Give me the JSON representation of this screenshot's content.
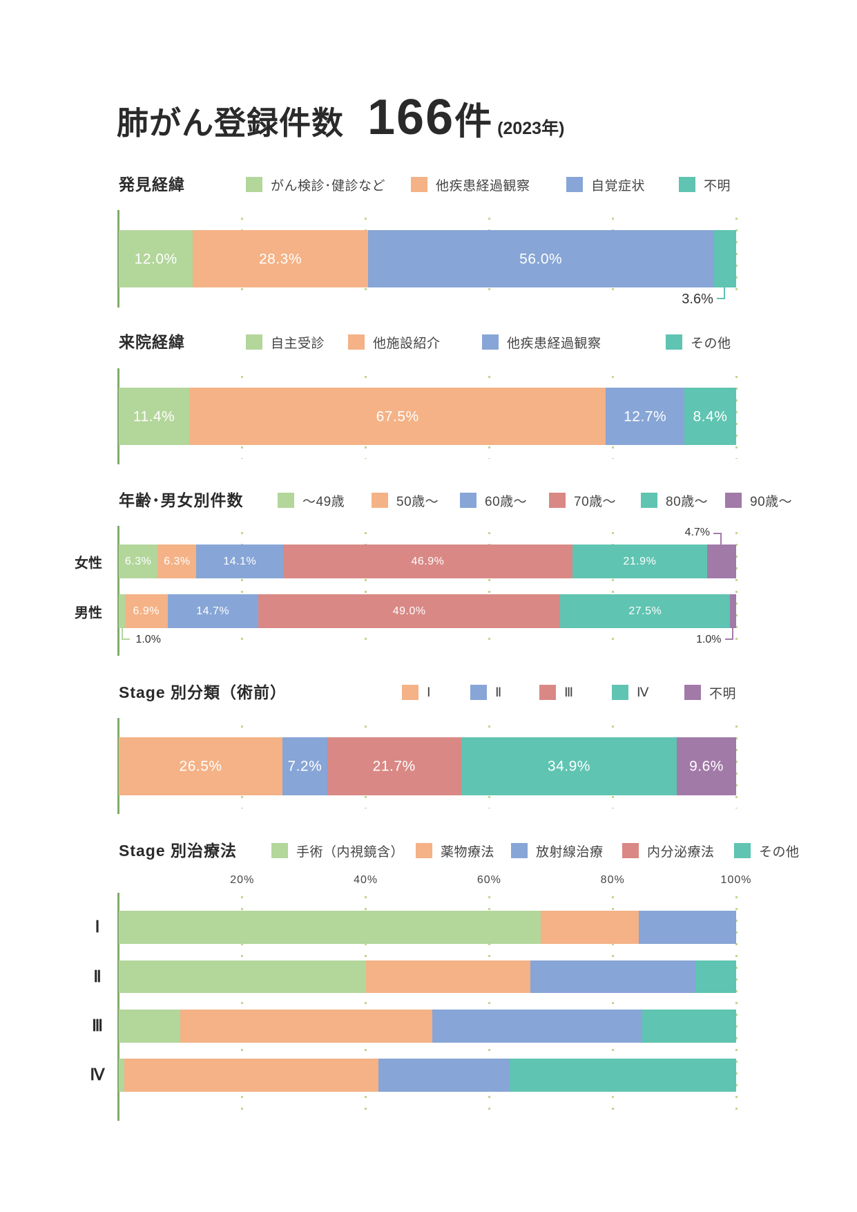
{
  "title": {
    "label": "肺がん登録件数",
    "count": "166",
    "unit": "件",
    "year": "(2023年)"
  },
  "colors": {
    "green": "#b3d69b",
    "orange": "#f4b286",
    "blue": "#87a5d6",
    "red": "#d98885",
    "teal": "#5fc4b1",
    "purple": "#a17aa8",
    "axis": "#7faa6a",
    "grid": "#bcd88f"
  },
  "chart_data": [
    {
      "title": "発見経緯",
      "type": "bar",
      "orientation": "horizontal",
      "stacked": true,
      "xlim": [
        0,
        100
      ],
      "grid": true,
      "legend": "top",
      "data_labels": true,
      "label_suffix": "%",
      "series": [
        {
          "name": "がん検診･健診など",
          "color": "#b3d69b",
          "values": [
            12.0
          ]
        },
        {
          "name": "他疾患経過観察",
          "color": "#f4b286",
          "values": [
            28.3
          ]
        },
        {
          "name": "自覚症状",
          "color": "#87a5d6",
          "values": [
            56.0
          ]
        },
        {
          "name": "不明",
          "color": "#5fc4b1",
          "values": [
            3.6
          ]
        }
      ]
    },
    {
      "title": "来院経緯",
      "type": "bar",
      "orientation": "horizontal",
      "stacked": true,
      "xlim": [
        0,
        100
      ],
      "grid": true,
      "legend": "top",
      "data_labels": true,
      "label_suffix": "%",
      "series": [
        {
          "name": "自主受診",
          "color": "#b3d69b",
          "values": [
            11.4
          ]
        },
        {
          "name": "他施設紹介",
          "color": "#f4b286",
          "values": [
            67.5
          ]
        },
        {
          "name": "他疾患経過観察",
          "color": "#87a5d6",
          "values": [
            12.7
          ]
        },
        {
          "name": "その他",
          "color": "#5fc4b1",
          "values": [
            8.4
          ]
        }
      ]
    },
    {
      "title": "年齢･男女別件数",
      "type": "bar",
      "orientation": "horizontal",
      "stacked": true,
      "xlim": [
        0,
        100
      ],
      "grid": true,
      "legend": "top",
      "data_labels": true,
      "label_suffix": "%",
      "categories": [
        "女性",
        "男性"
      ],
      "series": [
        {
          "name": "～49歳",
          "color": "#b3d69b",
          "values": [
            6.3,
            1.0
          ]
        },
        {
          "name": "50歳～",
          "color": "#f4b286",
          "values": [
            6.3,
            6.9
          ]
        },
        {
          "name": "60歳～",
          "color": "#87a5d6",
          "values": [
            14.1,
            14.7
          ]
        },
        {
          "name": "70歳～",
          "color": "#d98885",
          "values": [
            46.9,
            49.0
          ]
        },
        {
          "name": "80歳～",
          "color": "#5fc4b1",
          "values": [
            21.9,
            27.5
          ]
        },
        {
          "name": "90歳～",
          "color": "#a17aa8",
          "values": [
            4.7,
            1.0
          ]
        }
      ]
    },
    {
      "title": "Stage 別分類（術前）",
      "type": "bar",
      "orientation": "horizontal",
      "stacked": true,
      "xlim": [
        0,
        100
      ],
      "grid": true,
      "legend": "top",
      "data_labels": true,
      "label_suffix": "%",
      "series": [
        {
          "name": "Ⅰ",
          "color": "#f4b286",
          "values": [
            26.5
          ]
        },
        {
          "name": "Ⅱ",
          "color": "#87a5d6",
          "values": [
            7.2
          ]
        },
        {
          "name": "Ⅲ",
          "color": "#d98885",
          "values": [
            21.7
          ]
        },
        {
          "name": "Ⅳ",
          "color": "#5fc4b1",
          "values": [
            34.9
          ]
        },
        {
          "name": "不明",
          "color": "#a17aa8",
          "values": [
            9.6
          ]
        }
      ]
    },
    {
      "title": "Stage 別治療法",
      "type": "bar",
      "orientation": "horizontal",
      "stacked": true,
      "xlim": [
        0,
        100
      ],
      "grid": true,
      "legend": "top",
      "data_labels": false,
      "xticks": [
        "20%",
        "40%",
        "60%",
        "80%",
        "100%"
      ],
      "categories": [
        "Ⅰ",
        "Ⅱ",
        "Ⅲ",
        "Ⅳ"
      ],
      "series": [
        {
          "name": "手術（内視鏡含）",
          "color": "#b3d69b",
          "values": [
            68.4,
            40.0,
            10.0,
            0.9
          ]
        },
        {
          "name": "薬物療法",
          "color": "#f4b286",
          "values": [
            15.8,
            26.7,
            40.8,
            41.2
          ]
        },
        {
          "name": "放射線治療",
          "color": "#87a5d6",
          "values": [
            15.8,
            26.7,
            34.0,
            21.2
          ]
        },
        {
          "name": "内分泌療法",
          "color": "#d98885",
          "values": [
            0,
            0,
            0,
            0
          ]
        },
        {
          "name": "その他",
          "color": "#5fc4b1",
          "values": [
            0,
            6.6,
            15.2,
            36.7
          ]
        }
      ]
    }
  ]
}
